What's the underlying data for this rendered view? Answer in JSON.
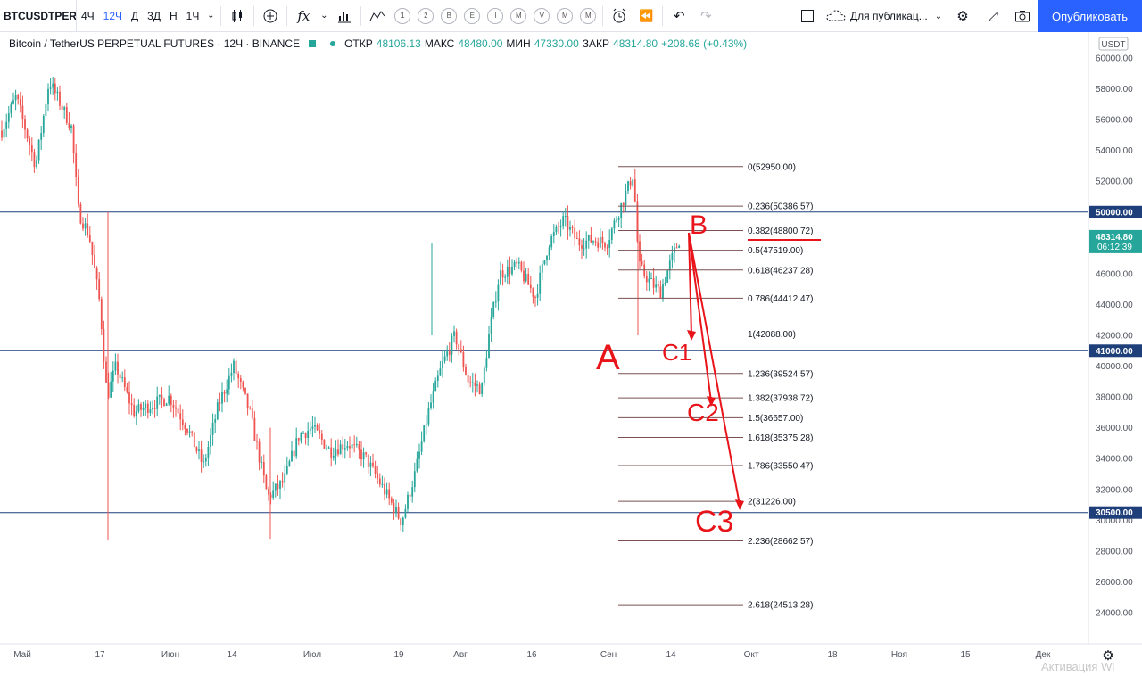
{
  "toolbar": {
    "symbol": "BTCUSDTPERP",
    "intervals": [
      "4Ч",
      "12Ч",
      "Д",
      "3Д",
      "Н",
      "1Ч"
    ],
    "active_interval": "12Ч",
    "chart_type_icon": "candles-icon",
    "indicators_icon": "fx-icon",
    "publish_scope": "Для публикац...",
    "publish_label": "Опубликовать",
    "circle_tools": [
      "1",
      "2",
      "B",
      "E",
      "I",
      "M",
      "V",
      "M",
      "M"
    ]
  },
  "legend": {
    "title": "Bitcoin / TetherUS PERPETUAL FUTURES · 12Ч · BINANCE",
    "open_label": "ОТКР",
    "open": "48106.13",
    "high_label": "МАКС",
    "high": "48480.00",
    "low_label": "МИН",
    "low": "47330.00",
    "close_label": "ЗАКР",
    "close": "48314.80",
    "change": "+208.68 (+0.43%)"
  },
  "chart_data": {
    "type": "candlestick",
    "currency": "USDT",
    "ylim": [
      23000,
      61000
    ],
    "y_ticks": [
      "60000.00",
      "58000.00",
      "56000.00",
      "54000.00",
      "52000.00",
      "50000.00",
      "48000.00",
      "46000.00",
      "44000.00",
      "42000.00",
      "40000.00",
      "38000.00",
      "36000.00",
      "34000.00",
      "32000.00",
      "30000.00",
      "28000.00",
      "26000.00",
      "24000.00"
    ],
    "x_ticks": [
      "Май",
      "17",
      "Июн",
      "14",
      "Июл",
      "19",
      "Авг",
      "16",
      "Сен",
      "14",
      "Окт",
      "18",
      "Ноя",
      "15",
      "Дек"
    ],
    "current_price": {
      "value": 48314.8,
      "label": "48314.80",
      "countdown": "06:12:39"
    },
    "horizontal_lines": [
      {
        "value": 50000,
        "label": "50000.00"
      },
      {
        "value": 41000,
        "label": "41000.00"
      },
      {
        "value": 30500,
        "label": "30500.00"
      }
    ],
    "fib_levels": [
      {
        "ratio": "0",
        "price": "52950.00",
        "value": 52950
      },
      {
        "ratio": "0.236",
        "price": "50386.57",
        "value": 50386.57
      },
      {
        "ratio": "0.382",
        "price": "48800.72",
        "value": 48800.72
      },
      {
        "ratio": "0.5",
        "price": "47519.00",
        "value": 47519
      },
      {
        "ratio": "0.618",
        "price": "46237.28",
        "value": 46237.28
      },
      {
        "ratio": "0.786",
        "price": "44412.47",
        "value": 44412.47
      },
      {
        "ratio": "1",
        "price": "42088.00",
        "value": 42088
      },
      {
        "ratio": "1.236",
        "price": "39524.57",
        "value": 39524.57
      },
      {
        "ratio": "1.382",
        "price": "37938.72",
        "value": 37938.72
      },
      {
        "ratio": "1.5",
        "price": "36657.00",
        "value": 36657
      },
      {
        "ratio": "1.618",
        "price": "35375.28",
        "value": 35375.28
      },
      {
        "ratio": "1.786",
        "price": "33550.47",
        "value": 33550.47
      },
      {
        "ratio": "2",
        "price": "31226.00",
        "value": 31226
      },
      {
        "ratio": "2.236",
        "price": "28662.57",
        "value": 28662.57
      },
      {
        "ratio": "2.618",
        "price": "24513.28",
        "value": 24513.28
      }
    ],
    "annotations": [
      "A",
      "B",
      "C1",
      "C2",
      "C3"
    ],
    "colors": {
      "up": "#26a69a",
      "down": "#ef5350",
      "hline": "#1e3f7a",
      "fib": "#7a5050",
      "drawing": "#e8141a",
      "price_badge": "#26a69a"
    }
  },
  "footer": {
    "watermark": "Активация Wi"
  }
}
